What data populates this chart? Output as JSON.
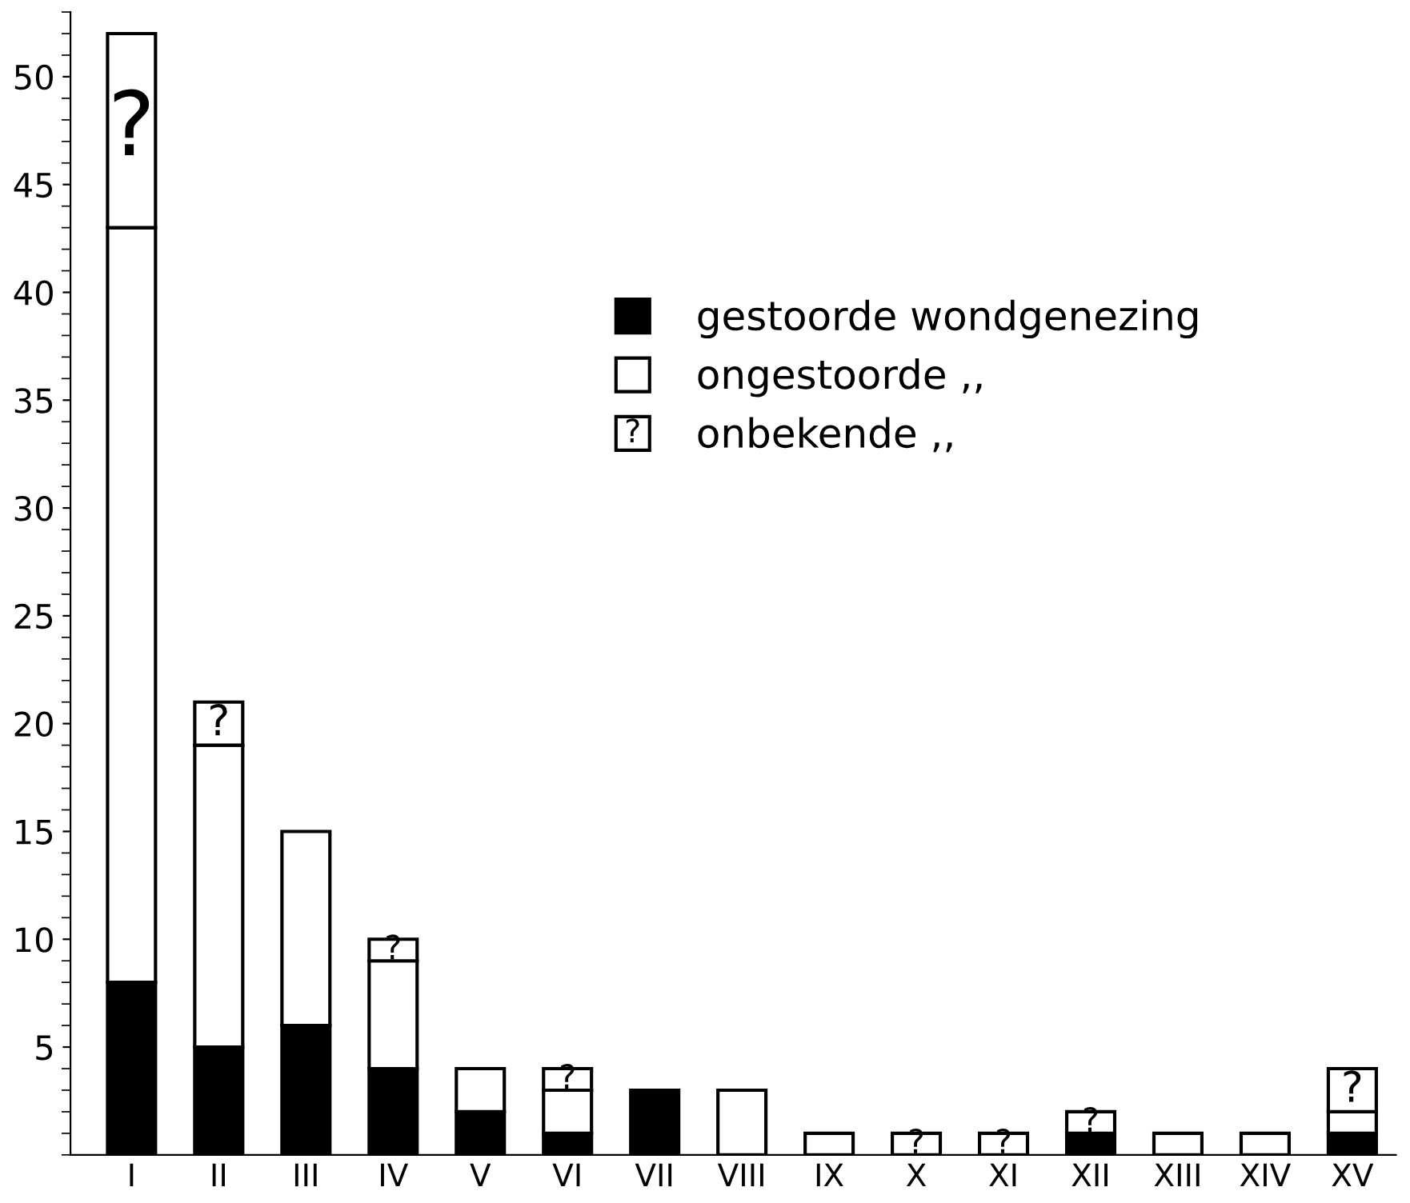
{
  "chart_data": {
    "type": "bar",
    "stacked": true,
    "categories": [
      "I",
      "II",
      "III",
      "IV",
      "V",
      "VI",
      "VII",
      "VIII",
      "IX",
      "X",
      "XI",
      "XII",
      "XIII",
      "XIV",
      "XV"
    ],
    "series": [
      {
        "name": "gestoorde wondgenezing",
        "color": "#000000",
        "values": [
          8,
          5,
          6,
          4,
          2,
          1,
          3,
          null,
          null,
          null,
          null,
          1,
          null,
          null,
          1
        ]
      },
      {
        "name": "ongestoorde ,,",
        "color": "#ffffff",
        "values": [
          35,
          14,
          9,
          5,
          2,
          2,
          null,
          3,
          1,
          null,
          null,
          null,
          1,
          1,
          1
        ]
      },
      {
        "name": "onbekende ,,",
        "color": "#ffffff",
        "values": [
          9,
          2,
          null,
          1,
          null,
          1,
          null,
          null,
          null,
          1,
          1,
          1,
          null,
          null,
          2
        ],
        "value_labels": [
          "?",
          "?",
          null,
          "?",
          null,
          "?",
          null,
          null,
          null,
          "?",
          "?",
          "?",
          null,
          null,
          "?"
        ]
      }
    ],
    "ylim": [
      0,
      53
    ],
    "yticks": [
      5,
      10,
      15,
      20,
      25,
      30,
      35,
      40,
      45,
      50
    ],
    "grid": false,
    "legend": "right"
  }
}
